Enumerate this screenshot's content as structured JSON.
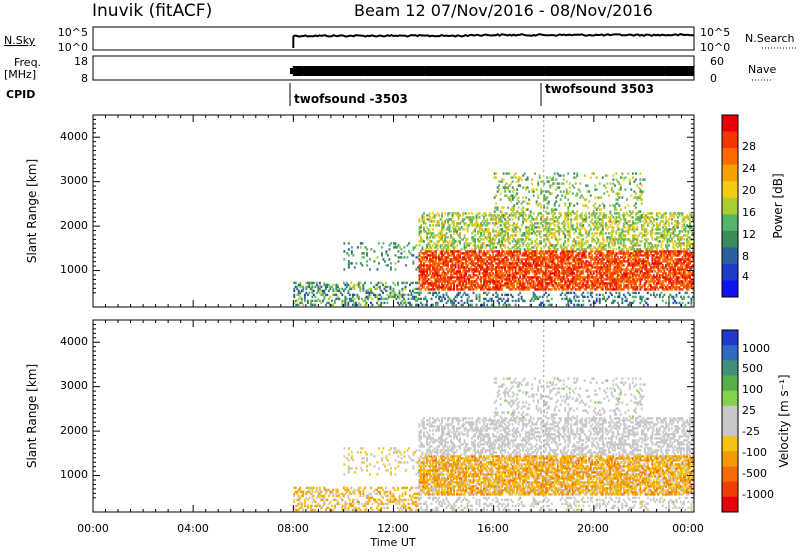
{
  "header": {
    "station": "Inuvik (fitACF)",
    "beam_date": "Beam 12  07/Nov/2016 - 08/Nov/2016"
  },
  "top_panels": {
    "nsky": {
      "left_label": "N.Sky",
      "left_ticks": [
        "10^5",
        "10^0"
      ],
      "right_ticks": [
        "10^5",
        "10^0"
      ],
      "right_label": "N.Search"
    },
    "freq": {
      "left_label_1": "Freq.",
      "left_label_2": "[MHz]",
      "left_ticks": [
        "18",
        "8"
      ],
      "right_ticks": [
        "60",
        "0"
      ],
      "right_label": "Nave"
    },
    "cpid": {
      "label": "CPID",
      "entries": [
        "twofsound -3503",
        "twofsound 3503"
      ]
    }
  },
  "power_panel": {
    "ylabel": "Slant Range [km]",
    "yticks": [
      "4000",
      "3000",
      "2000",
      "1000"
    ],
    "colorbar_label": "Power [dB]",
    "colorbar_ticks": [
      "28",
      "24",
      "20",
      "16",
      "12",
      "8",
      "4"
    ],
    "colorbar_colors": [
      "#e8000a",
      "#f53500",
      "#fd6a00",
      "#f6a100",
      "#f2cc13",
      "#abcd2f",
      "#58b46b",
      "#3a8c5a",
      "#2c5fa0",
      "#1e3cc8",
      "#0c14f0"
    ]
  },
  "velocity_panel": {
    "ylabel": "Slant Range [km]",
    "yticks": [
      "4000",
      "3000",
      "2000",
      "1000"
    ],
    "colorbar_label": "Velocity [m s⁻¹]",
    "colorbar_ticks": [
      "1000",
      "500",
      "100",
      "25",
      "-25",
      "-100",
      "-500",
      "-1000"
    ],
    "colorbar_colors": [
      "#1f3ac8",
      "#2f6bc2",
      "#3f8f7a",
      "#56b04a",
      "#84d14c",
      "#c8c8c8",
      "#c8c8c8",
      "#f3c40f",
      "#f59a06",
      "#f36d04",
      "#ef3d05",
      "#e8000a"
    ]
  },
  "xaxis": {
    "ticks": [
      "00:00",
      "04:00",
      "08:00",
      "12:00",
      "16:00",
      "20:00",
      "00:00"
    ],
    "label": "Time UT"
  },
  "chart_data": {
    "type": "heatmap",
    "title": "Inuvik (fitACF)  Beam 12  07/Nov/2016 - 08/Nov/2016",
    "xlabel": "Time UT",
    "ylabel": "Slant Range [km]",
    "xlim_hours": [
      0,
      24
    ],
    "ylim_km": [
      180,
      4500
    ],
    "data_start_hour": 8.0,
    "cpid_change_hour": 18.0,
    "panels": [
      {
        "name": "Power",
        "unit": "dB",
        "colorbar_range": [
          0,
          30
        ]
      },
      {
        "name": "Velocity",
        "unit": "m s^-1",
        "colorbar_range": [
          -1000,
          1000
        ]
      }
    ],
    "echo_regions": [
      {
        "feature": "main backscatter band",
        "time_range_hours": [
          13,
          24
        ],
        "range_km": [
          600,
          1500
        ],
        "power_db": "24-30",
        "velocity_ms": "-100 to -500"
      },
      {
        "feature": "secondary band",
        "time_range_hours": [
          13,
          24
        ],
        "range_km": [
          1500,
          2300
        ],
        "power_db": "12-20",
        "velocity_ms": "-25 to 25"
      },
      {
        "feature": "near-range scatter",
        "time_range_hours": [
          8,
          13
        ],
        "range_km": [
          200,
          700
        ],
        "power_db": "4-16",
        "velocity_ms": "-100 to -500"
      }
    ]
  }
}
